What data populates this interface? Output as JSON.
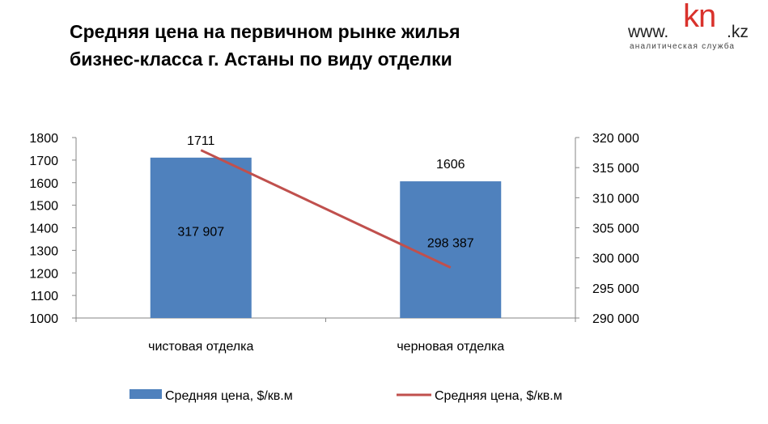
{
  "title_line1": "Средняя цена на первичном рынке жилья",
  "title_line2": "бизнес-класса г. Астаны по виду отделки",
  "logo": {
    "prefix": "www.",
    "brand": "kn",
    "suffix": ".kz",
    "tagline": "аналитическая служба"
  },
  "colors": {
    "bar": "#4f81bd",
    "line": "#c0504d",
    "axis": "#868686",
    "text": "#000000"
  },
  "chart_data": {
    "type": "bar",
    "categories": [
      "чистовая отделка",
      "черновая отделка"
    ],
    "series": [
      {
        "name": "Средняя цена, $/кв.м",
        "type": "bar",
        "axis": "left",
        "values": [
          1711,
          1606
        ],
        "data_labels": [
          "1711",
          "1606"
        ]
      },
      {
        "name": "Средняя цена, $/кв.м",
        "type": "line",
        "axis": "right",
        "values": [
          317907,
          298387
        ],
        "data_labels": [
          "317 907",
          "298 387"
        ]
      }
    ],
    "y_left": {
      "min": 1000,
      "max": 1800,
      "ticks": [
        1000,
        1100,
        1200,
        1300,
        1400,
        1500,
        1600,
        1700,
        1800
      ],
      "tick_labels": [
        "1000",
        "1100",
        "1200",
        "1300",
        "1400",
        "1500",
        "1600",
        "1700",
        "1800"
      ]
    },
    "y_right": {
      "min": 290000,
      "max": 320000,
      "ticks": [
        290000,
        295000,
        300000,
        305000,
        310000,
        315000,
        320000
      ],
      "tick_labels": [
        "290 000",
        "295 000",
        "300 000",
        "305 000",
        "310 000",
        "315 000",
        "320 000"
      ]
    },
    "grid": false,
    "legend": "bottom"
  }
}
